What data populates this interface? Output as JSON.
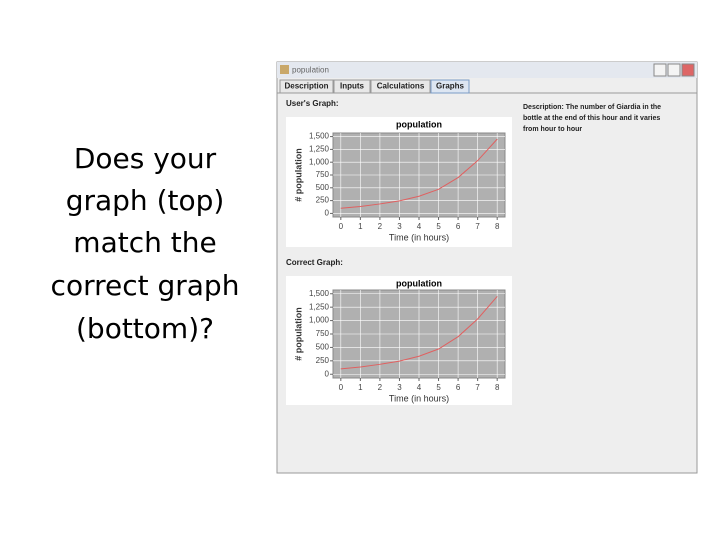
{
  "slide": {
    "question_lines": [
      "Does your",
      "graph (top)",
      "match the",
      "correct graph",
      "(bottom)?"
    ]
  },
  "window": {
    "title": "population",
    "tabs": [
      "Description",
      "Inputs",
      "Calculations",
      "Graphs"
    ],
    "users_graph_label": "User's Graph:",
    "correct_graph_label": "Correct Graph:",
    "description_lines": [
      "Description: The number of Giardia in the",
      "bottle at the end of this hour and it varies",
      "from hour to hour"
    ]
  },
  "chart_data": [
    {
      "type": "line",
      "title": "population",
      "xlabel": "Time (in hours)",
      "ylabel": "# population",
      "x": [
        0,
        1,
        2,
        3,
        4,
        5,
        6,
        7,
        8
      ],
      "values": [
        100,
        135,
        185,
        245,
        335,
        470,
        700,
        1030,
        1450
      ],
      "color": "#e06060",
      "xlim": [
        -0.4,
        8.4
      ],
      "ylim": [
        -70,
        1570
      ],
      "xticks": [
        0,
        1,
        2,
        3,
        4,
        5,
        6,
        7,
        8
      ],
      "yticks": [
        0,
        250,
        500,
        750,
        {
          "value": 1000,
          "label": "1,000"
        },
        {
          "value": 1250,
          "label": "1,250"
        },
        {
          "value": 1500,
          "label": "1,500"
        }
      ],
      "grid": true
    },
    {
      "type": "line",
      "title": "population",
      "xlabel": "Time (in hours)",
      "ylabel": "# population",
      "x": [
        0,
        1,
        2,
        3,
        4,
        5,
        6,
        7,
        8
      ],
      "values": [
        100,
        135,
        185,
        245,
        335,
        470,
        700,
        1030,
        1450
      ],
      "color": "#e06060",
      "xlim": [
        -0.4,
        8.4
      ],
      "ylim": [
        -70,
        1570
      ],
      "xticks": [
        0,
        1,
        2,
        3,
        4,
        5,
        6,
        7,
        8
      ],
      "yticks": [
        0,
        250,
        500,
        750,
        {
          "value": 1000,
          "label": "1,000"
        },
        {
          "value": 1250,
          "label": "1,250"
        },
        {
          "value": 1500,
          "label": "1,500"
        }
      ],
      "grid": true
    }
  ]
}
